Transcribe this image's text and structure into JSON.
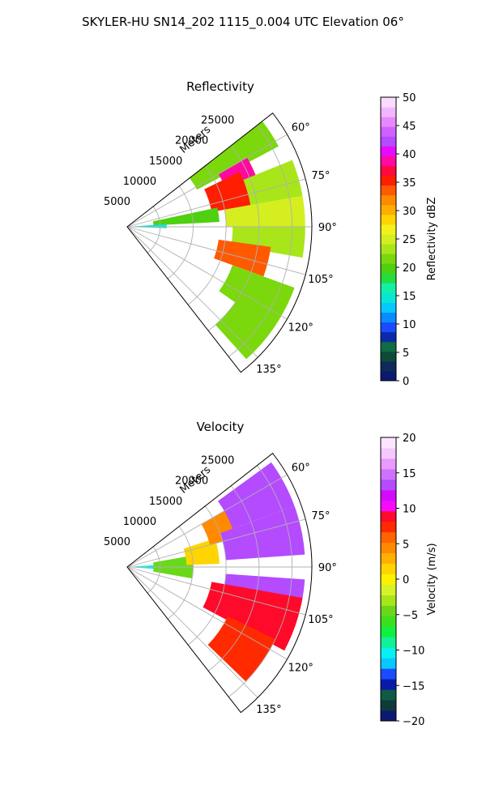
{
  "figure": {
    "title": "SKYLER-HU  SN14_202  1115_0.004 UTC Elevation 06°"
  },
  "chart_data": [
    {
      "type": "heatmap",
      "projection": "polar-sector",
      "title": "Reflectivity",
      "range_label": "Meters",
      "range_ticks": [
        5000,
        10000,
        15000,
        20000,
        25000
      ],
      "range_tick_labels": [
        "5000",
        "10000",
        "15000",
        "20000",
        "25000"
      ],
      "rmax": 28000,
      "azimuth_range_deg": [
        52,
        142
      ],
      "azimuth_ticks_deg": [
        60,
        75,
        90,
        105,
        120,
        135
      ],
      "azimuth_tick_labels": [
        "60°",
        "75°",
        "90°",
        "105°",
        "120°",
        "135°"
      ],
      "grid": true,
      "colorbar": {
        "label": "Reflectivity dBZ",
        "min": 0,
        "max": 50,
        "ticks": [
          0,
          5,
          10,
          15,
          20,
          25,
          30,
          35,
          40,
          45,
          50
        ],
        "tick_labels": [
          "0",
          "5",
          "10",
          "15",
          "20",
          "25",
          "30",
          "35",
          "40",
          "45",
          "50"
        ],
        "colors": [
          "#0b1a6e",
          "#0f2a5a",
          "#0e4a3a",
          "#116b44",
          "#0a2aa8",
          "#1b4bff",
          "#0a8cff",
          "#06c8ff",
          "#08e6d6",
          "#12f0a8",
          "#24dd40",
          "#4fd010",
          "#7ad80c",
          "#a8e61a",
          "#d4ee1f",
          "#f2f21a",
          "#ffd400",
          "#ffad00",
          "#ff8a00",
          "#ff5a00",
          "#ff1e00",
          "#ff0a3c",
          "#ff0aa0",
          "#e70aff",
          "#b44bff",
          "#d060ff",
          "#e888ff",
          "#f2b6ff",
          "#fadcff"
        ]
      },
      "cells": [
        {
          "az_min": 52,
          "az_max": 62,
          "r_min": 12000,
          "r_max": 26000,
          "value": 22
        },
        {
          "az_min": 60,
          "az_max": 70,
          "r_min": 16000,
          "r_max": 21000,
          "value": 38
        },
        {
          "az_min": 64,
          "az_max": 80,
          "r_min": 13000,
          "r_max": 19000,
          "value": 35
        },
        {
          "az_min": 68,
          "az_max": 80,
          "r_min": 19000,
          "r_max": 27000,
          "value": 24
        },
        {
          "az_min": 78,
          "az_max": 87,
          "r_min": 4000,
          "r_max": 14000,
          "value": 19
        },
        {
          "az_min": 80,
          "az_max": 90,
          "r_min": 15000,
          "r_max": 27000,
          "value": 25
        },
        {
          "az_min": 86,
          "az_max": 92,
          "r_min": 500,
          "r_max": 6000,
          "value": 14
        },
        {
          "az_min": 90,
          "az_max": 100,
          "r_min": 16000,
          "r_max": 27000,
          "value": 24
        },
        {
          "az_min": 98,
          "az_max": 110,
          "r_min": 14000,
          "r_max": 22000,
          "value": 34
        },
        {
          "az_min": 110,
          "az_max": 125,
          "r_min": 17000,
          "r_max": 27000,
          "value": 22
        },
        {
          "az_min": 124,
          "az_max": 138,
          "r_min": 20000,
          "r_max": 27000,
          "value": 21
        }
      ]
    },
    {
      "type": "heatmap",
      "projection": "polar-sector",
      "title": "Velocity",
      "range_label": "Meters",
      "range_ticks": [
        5000,
        10000,
        15000,
        20000,
        25000
      ],
      "range_tick_labels": [
        "5000",
        "10000",
        "15000",
        "20000",
        "25000"
      ],
      "rmax": 28000,
      "azimuth_range_deg": [
        52,
        142
      ],
      "azimuth_ticks_deg": [
        60,
        75,
        90,
        105,
        120,
        135
      ],
      "azimuth_tick_labels": [
        "60°",
        "75°",
        "90°",
        "105°",
        "120°",
        "135°"
      ],
      "grid": true,
      "colorbar": {
        "label": "Velocity (m/s)",
        "min": -20,
        "max": 20,
        "ticks": [
          -20,
          -15,
          -10,
          -5,
          0,
          5,
          10,
          15,
          20
        ],
        "tick_labels": [
          "−20",
          "−15",
          "−10",
          "−5",
          "0",
          "5",
          "10",
          "15",
          "20"
        ],
        "colors": [
          "#0b1a6e",
          "#0e3a3a",
          "#0f5a44",
          "#0a1aa8",
          "#1b4bff",
          "#08c8ff",
          "#08f0f0",
          "#12f09a",
          "#10f040",
          "#3ae01c",
          "#6ad81a",
          "#a8e61a",
          "#d8f22a",
          "#fff000",
          "#ffd400",
          "#ffb000",
          "#ff8a00",
          "#ff6400",
          "#ff2a00",
          "#ff0a2a",
          "#f80aff",
          "#d40aff",
          "#b44bff",
          "#d070ff",
          "#e89aff",
          "#f5c8ff",
          "#fce6ff"
        ]
      },
      "cells": [
        {
          "az_min": 86,
          "az_max": 94,
          "r_min": 500,
          "r_max": 5000,
          "value": -10
        },
        {
          "az_min": 80,
          "az_max": 100,
          "r_min": 4000,
          "r_max": 10000,
          "value": -4
        },
        {
          "az_min": 72,
          "az_max": 88,
          "r_min": 9000,
          "r_max": 14000,
          "value": 2
        },
        {
          "az_min": 60,
          "az_max": 75,
          "r_min": 13000,
          "r_max": 18000,
          "value": 4
        },
        {
          "az_min": 54,
          "az_max": 70,
          "r_min": 17000,
          "r_max": 27000,
          "value": 14
        },
        {
          "az_min": 70,
          "az_max": 86,
          "r_min": 15000,
          "r_max": 27000,
          "value": 14
        },
        {
          "az_min": 94,
          "az_max": 102,
          "r_min": 15000,
          "r_max": 27000,
          "value": 13
        },
        {
          "az_min": 100,
          "az_max": 118,
          "r_min": 13000,
          "r_max": 27000,
          "value": 9
        },
        {
          "az_min": 116,
          "az_max": 134,
          "r_min": 17000,
          "r_max": 25000,
          "value": 7
        }
      ]
    }
  ]
}
